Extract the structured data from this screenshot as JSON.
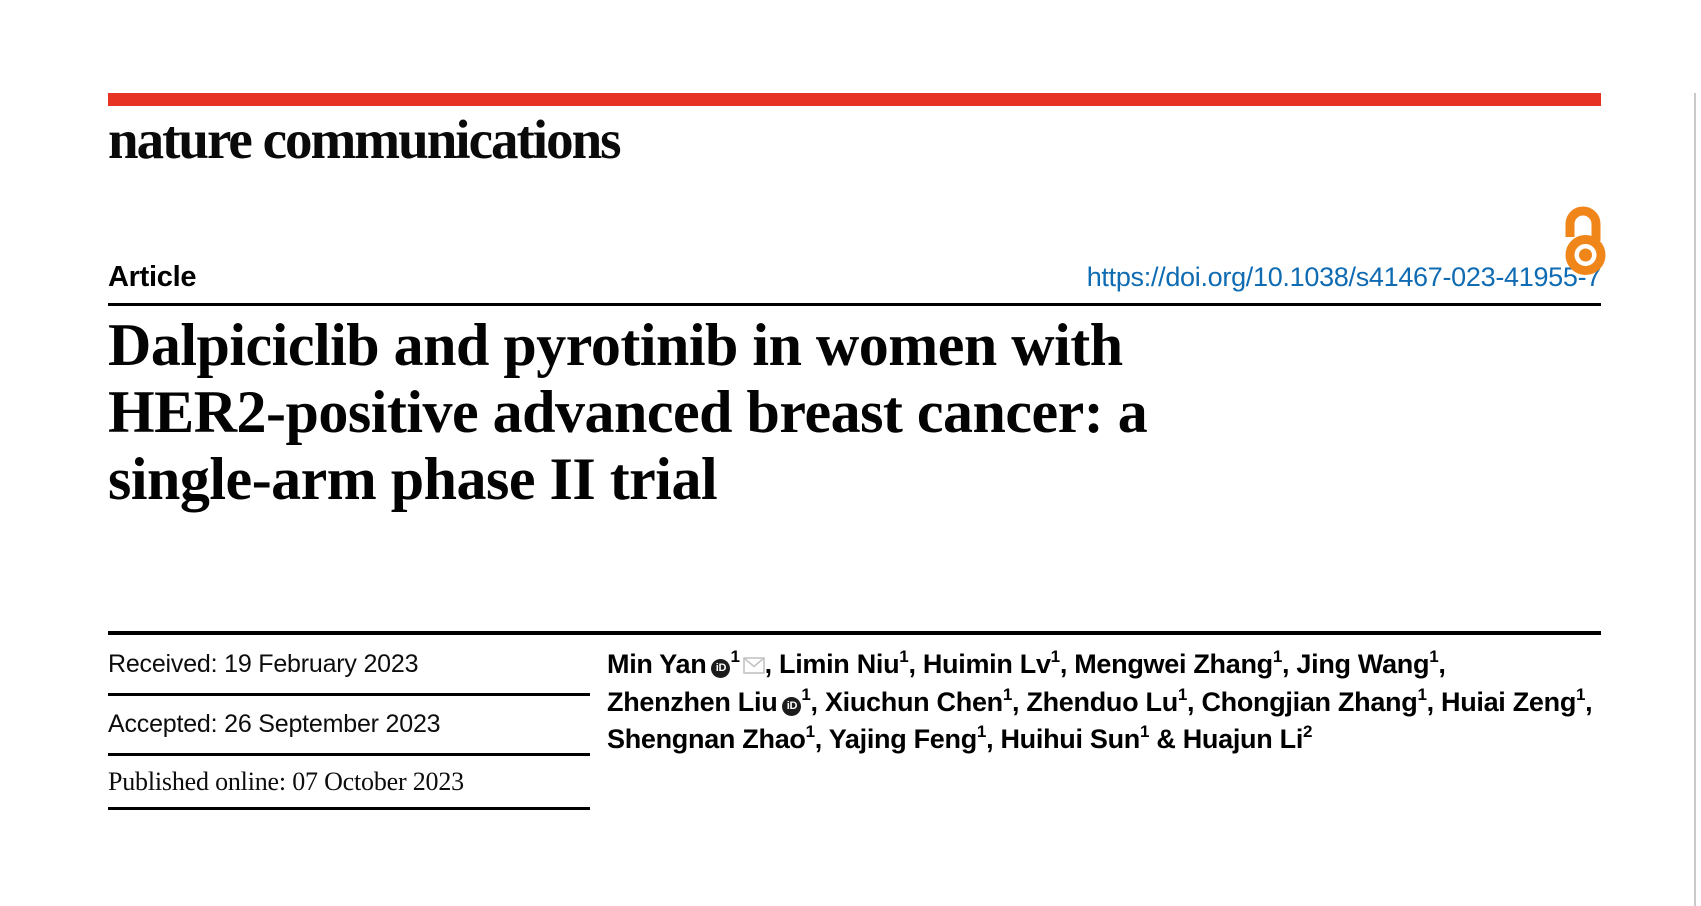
{
  "brand": {
    "logo_text": "nature communications",
    "accent_red": "#e63323",
    "open_access_orange": "#f08519"
  },
  "header": {
    "kicker": "Article",
    "doi_link": "https://doi.org/10.1038/s41467-023-41955-7",
    "link_blue": "#0f6bb2"
  },
  "title": {
    "lines": [
      "Dalpiciclib and pyrotinib in women with",
      "HER2-positive advanced breast cancer: a",
      "single-arm phase II trial"
    ]
  },
  "history": [
    {
      "label": "Received:",
      "value": "19 February 2023"
    },
    {
      "label": "Accepted:",
      "value": "26 September 2023"
    },
    {
      "label": "Published online:",
      "value": "07 October 2023"
    }
  ],
  "authors": {
    "orcid_label": "iD",
    "lines": [
      [
        {
          "name": "Min Yan",
          "orcid": true,
          "sup": "1",
          "email": true,
          "sep": ", "
        },
        {
          "name": "Limin Niu",
          "sup": "1",
          "sep": ", "
        },
        {
          "name": "Huimin Lv",
          "sup": "1",
          "sep": ", "
        },
        {
          "name": "Mengwei Zhang",
          "sup": "1",
          "sep": ", "
        },
        {
          "name": "Jing Wang",
          "sup": "1",
          "sep": ","
        }
      ],
      [
        {
          "name": "Zhenzhen Liu",
          "orcid": true,
          "sup": "1",
          "sep": ", "
        },
        {
          "name": "Xiuchun Chen",
          "sup": "1",
          "sep": ", "
        },
        {
          "name": "Zhenduo Lu",
          "sup": "1",
          "sep": ", "
        },
        {
          "name": "Chongjian Zhang",
          "sup": "1",
          "sep": ", "
        },
        {
          "name": "Huiai Zeng",
          "sup": "1",
          "sep": ","
        }
      ],
      [
        {
          "name": "Shengnan Zhao",
          "sup": "1",
          "sep": ", "
        },
        {
          "name": "Yajing Feng",
          "sup": "1",
          "sep": ", "
        },
        {
          "name": "Huihui Sun",
          "sup": "1",
          "sep": " & "
        },
        {
          "name": "Huajun Li",
          "sup": "2",
          "sep": ""
        }
      ]
    ]
  }
}
